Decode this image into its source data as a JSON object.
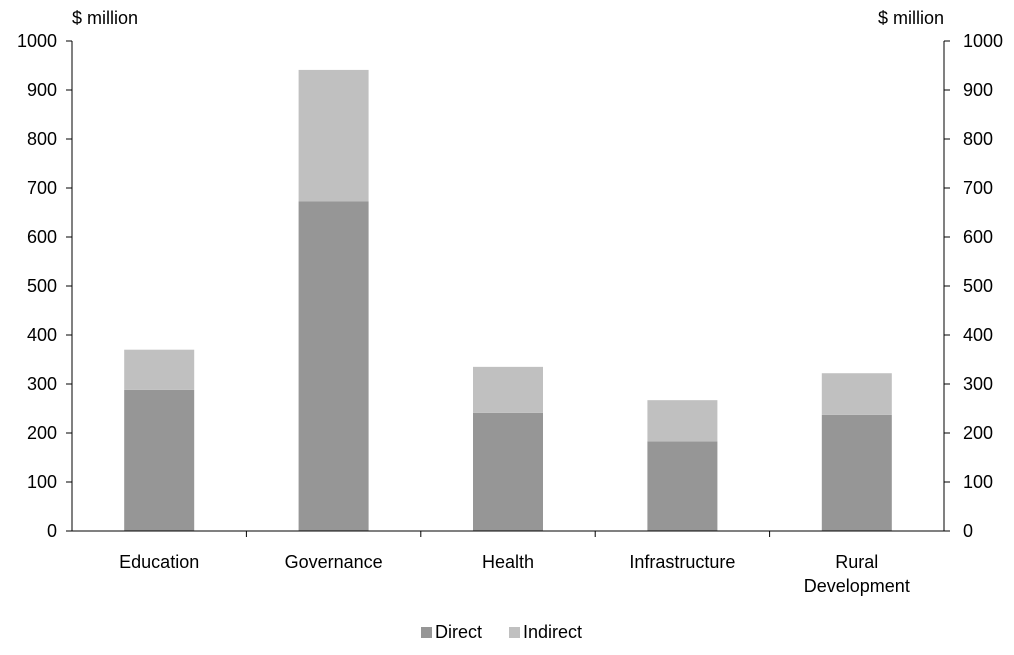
{
  "chart_data": {
    "type": "bar",
    "stacked": true,
    "categories": [
      "Education",
      "Governance",
      "Health",
      "Infrastructure",
      "Rural Development"
    ],
    "series": [
      {
        "name": "Direct",
        "values": [
          288,
          673,
          241,
          183,
          237
        ],
        "color": "#969696"
      },
      {
        "name": "Indirect",
        "values": [
          82,
          268,
          94,
          84,
          85
        ],
        "color": "#c0c0c0"
      }
    ],
    "yunit_left": "$ million",
    "yunit_right": "$ million",
    "ylim": [
      0,
      1000
    ],
    "yticks": [
      0,
      100,
      200,
      300,
      400,
      500,
      600,
      700,
      800,
      900,
      1000
    ],
    "grid": false,
    "legend_position": "bottom-center"
  }
}
